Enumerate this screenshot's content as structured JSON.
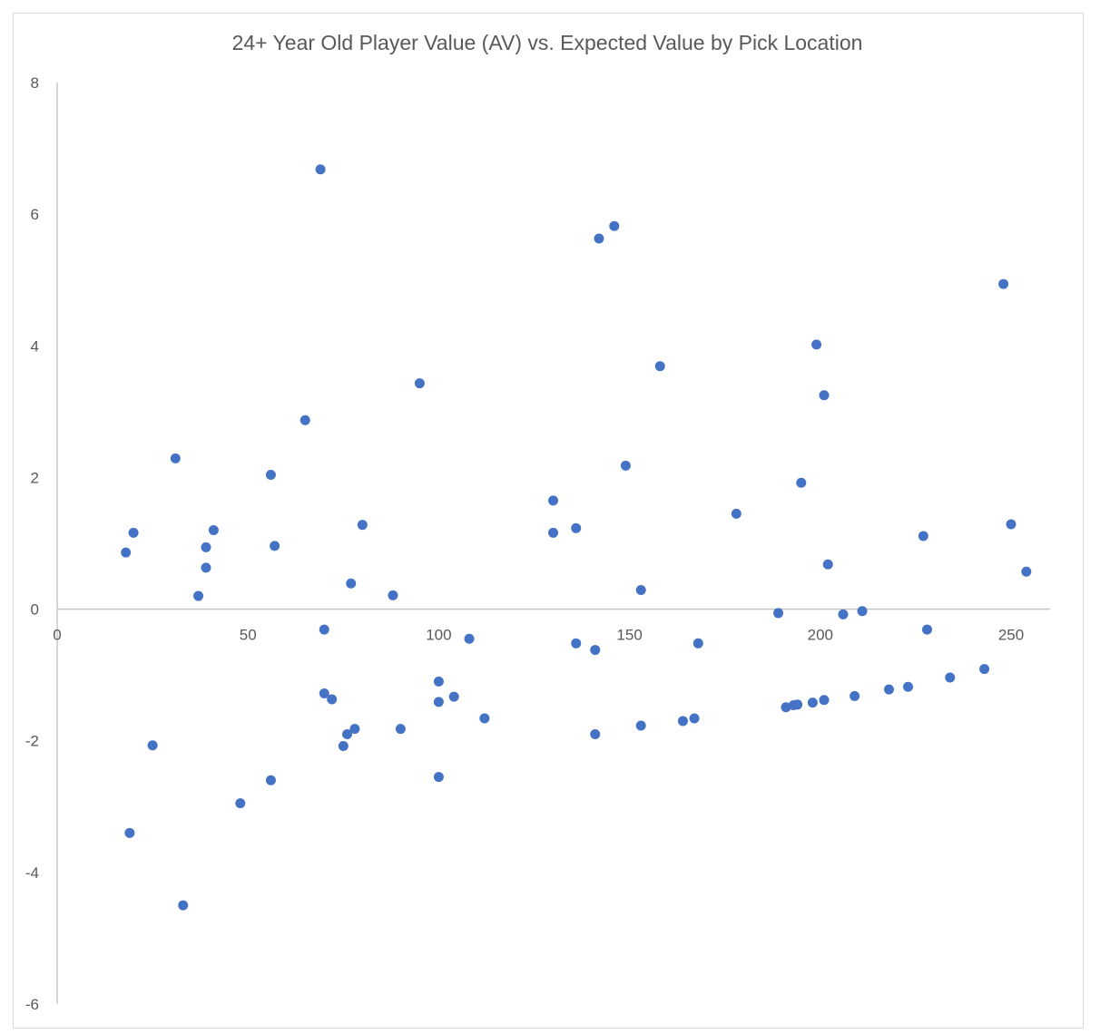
{
  "chart_data": {
    "type": "scatter",
    "title": "24+ Year Old Player Value (AV) vs. Expected Value by Pick Location",
    "xlabel": "",
    "ylabel": "",
    "xlim": [
      0,
      260
    ],
    "ylim": [
      -6,
      8
    ],
    "x_ticks": [
      "0",
      "50",
      "100",
      "150",
      "200",
      "250"
    ],
    "y_ticks": [
      "8",
      "6",
      "4",
      "2",
      "0",
      "-2",
      "-4",
      "-6"
    ],
    "grid": false,
    "legend": "none",
    "marker_color": "#4472c4",
    "series": [
      {
        "points": [
          [
            18,
            0.86
          ],
          [
            20,
            1.16
          ],
          [
            19,
            -3.4
          ],
          [
            25,
            -2.07
          ],
          [
            31,
            2.29
          ],
          [
            33,
            -4.5
          ],
          [
            37,
            0.2
          ],
          [
            39,
            0.63
          ],
          [
            39,
            0.94
          ],
          [
            41,
            1.2
          ],
          [
            48,
            -2.95
          ],
          [
            56,
            -2.6
          ],
          [
            56,
            2.04
          ],
          [
            57,
            0.96
          ],
          [
            65,
            2.87
          ],
          [
            69,
            6.68
          ],
          [
            70,
            -0.31
          ],
          [
            70,
            -1.28
          ],
          [
            72,
            -1.37
          ],
          [
            75,
            -2.08
          ],
          [
            76,
            -1.9
          ],
          [
            77,
            0.39
          ],
          [
            78,
            -1.82
          ],
          [
            80,
            1.28
          ],
          [
            88,
            0.21
          ],
          [
            90,
            -1.82
          ],
          [
            95,
            3.43
          ],
          [
            100,
            -1.1
          ],
          [
            100,
            -1.41
          ],
          [
            100,
            -2.55
          ],
          [
            104,
            -1.33
          ],
          [
            108,
            -0.45
          ],
          [
            112,
            -1.66
          ],
          [
            130,
            1.65
          ],
          [
            130,
            1.16
          ],
          [
            136,
            1.23
          ],
          [
            136,
            -0.52
          ],
          [
            141,
            -0.62
          ],
          [
            141,
            -1.9
          ],
          [
            142,
            5.63
          ],
          [
            146,
            5.82
          ],
          [
            149,
            2.18
          ],
          [
            153,
            0.29
          ],
          [
            153,
            -1.77
          ],
          [
            158,
            3.69
          ],
          [
            164,
            -1.7
          ],
          [
            167,
            -1.66
          ],
          [
            168,
            -0.52
          ],
          [
            178,
            1.45
          ],
          [
            189,
            -0.06
          ],
          [
            191,
            -1.49
          ],
          [
            193,
            -1.46
          ],
          [
            194,
            -1.45
          ],
          [
            195,
            1.92
          ],
          [
            198,
            -1.42
          ],
          [
            199,
            4.02
          ],
          [
            201,
            3.25
          ],
          [
            201,
            -1.38
          ],
          [
            202,
            0.68
          ],
          [
            206,
            -0.08
          ],
          [
            209,
            -1.32
          ],
          [
            211,
            -0.03
          ],
          [
            218,
            -1.22
          ],
          [
            223,
            -1.18
          ],
          [
            227,
            1.11
          ],
          [
            228,
            -0.31
          ],
          [
            234,
            -1.04
          ],
          [
            243,
            -0.91
          ],
          [
            248,
            4.94
          ],
          [
            250,
            1.29
          ],
          [
            254,
            0.57
          ]
        ]
      }
    ]
  }
}
